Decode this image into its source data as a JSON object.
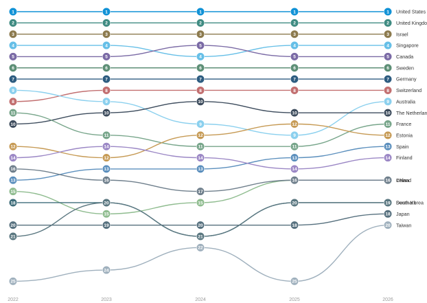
{
  "chart_data": {
    "type": "line",
    "subtype": "bump",
    "x": [
      "2022",
      "2023",
      "2024",
      "2025",
      "2026"
    ],
    "series": [
      {
        "name": "United States",
        "values": [
          1,
          1,
          1,
          1,
          1
        ],
        "color": "#1192d6"
      },
      {
        "name": "United Kingdom",
        "values": [
          2,
          2,
          2,
          2,
          2
        ],
        "color": "#3f8b82"
      },
      {
        "name": "Israel",
        "values": [
          3,
          3,
          3,
          3,
          3
        ],
        "color": "#8c7a4e"
      },
      {
        "name": "Singapore",
        "values": [
          4,
          4,
          5,
          4,
          4
        ],
        "color": "#66bfe7"
      },
      {
        "name": "Canada",
        "values": [
          5,
          5,
          4,
          5,
          5
        ],
        "color": "#7a6aa5"
      },
      {
        "name": "Sweden",
        "values": [
          6,
          6,
          6,
          6,
          6
        ],
        "color": "#5d8f76"
      },
      {
        "name": "Germany",
        "values": [
          7,
          7,
          7,
          7,
          7
        ],
        "color": "#2d5c80"
      },
      {
        "name": "Switzerland",
        "values": [
          9,
          8,
          8,
          8,
          8
        ],
        "color": "#c26f70"
      },
      {
        "name": "Australia",
        "values": [
          8,
          9,
          11,
          12,
          9
        ],
        "color": "#8bd0ee"
      },
      {
        "name": "The Netherlands",
        "values": [
          11,
          10,
          9,
          10,
          10
        ],
        "color": "#3c4b5c"
      },
      {
        "name": "France",
        "values": [
          10,
          12,
          13,
          13,
          11
        ],
        "color": "#77a58a"
      },
      {
        "name": "Estonia",
        "values": [
          13,
          14,
          12,
          11,
          12
        ],
        "color": "#c69a54"
      },
      {
        "name": "Spain",
        "values": [
          16,
          15,
          15,
          14,
          13
        ],
        "color": "#5b8fbd"
      },
      {
        "name": "Finland",
        "values": [
          14,
          13,
          14,
          15,
          14
        ],
        "color": "#9b87c5"
      },
      {
        "name": "China",
        "values": [
          17,
          19,
          18,
          16,
          16
        ],
        "color": "#8fbc8f"
      },
      {
        "name": "Ireland",
        "values": [
          15,
          16,
          17,
          16,
          16
        ],
        "color": "#6f7f8c"
      },
      {
        "name": "Denmark",
        "values": [
          18,
          18,
          21,
          18,
          18
        ],
        "color": "#3e6d7a"
      },
      {
        "name": "Japan",
        "values": [
          20,
          20,
          20,
          20,
          19
        ],
        "color": "#56707e"
      },
      {
        "name": "South Korea",
        "values": [
          21,
          18,
          21,
          18,
          18
        ],
        "color": "#5a7780"
      },
      {
        "name": "Taiwan",
        "values": [
          25,
          24,
          22,
          25,
          20
        ],
        "color": "#9fb0bd"
      }
    ],
    "node_labels": [
      [
        "1",
        "2",
        "3",
        "4",
        "5",
        "6",
        "7",
        "8",
        "9",
        "10",
        "11",
        "12",
        "13",
        "14",
        "15",
        "16",
        "18",
        "20",
        "21",
        "25"
      ],
      [
        "1",
        "2",
        "3",
        "4",
        "5",
        "6",
        "7",
        "8",
        "9",
        "10",
        "11",
        "12",
        "13",
        "14",
        "15",
        "16",
        "18",
        "19",
        "20",
        "24"
      ],
      [
        "1",
        "2",
        "3",
        "4",
        "5",
        "6",
        "7",
        "8",
        "9",
        "10",
        "11",
        "12",
        "13",
        "14",
        "15",
        "17",
        "18",
        "20",
        "21",
        "22"
      ],
      [
        "1",
        "2",
        "3",
        "4",
        "5",
        "6",
        "7",
        "8",
        "9",
        "10",
        "11",
        "12",
        "13",
        "14",
        "15",
        "16",
        "17",
        "18",
        "20",
        "25"
      ],
      [
        "1",
        "2",
        "3",
        "4",
        "5",
        "6",
        "7",
        "8",
        "9",
        "10",
        "11",
        "12",
        "13",
        "14",
        "15",
        "16",
        "17",
        "18",
        "19",
        "20"
      ]
    ],
    "xlabel": "",
    "ylabel": "",
    "legend": "right",
    "grid": false
  }
}
